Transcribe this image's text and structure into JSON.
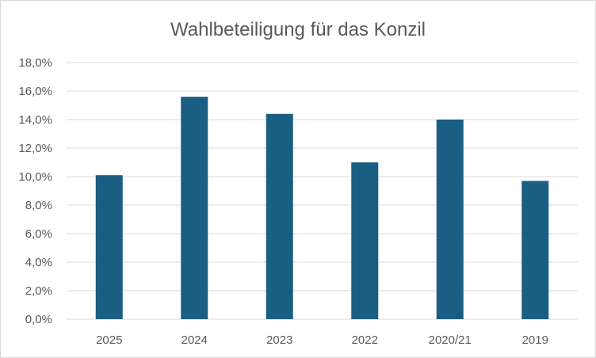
{
  "chart_data": {
    "type": "bar",
    "title": "Wahlbeteiligung für das Konzil",
    "categories": [
      "2025",
      "2024",
      "2023",
      "2022",
      "2020/21",
      "2019"
    ],
    "values": [
      10.1,
      15.6,
      14.4,
      11.0,
      14.0,
      9.7
    ],
    "ylim": [
      0,
      18
    ],
    "yticks": [
      "0,0%",
      "2,0%",
      "4,0%",
      "6,0%",
      "8,0%",
      "10,0%",
      "12,0%",
      "14,0%",
      "16,0%",
      "18,0%"
    ],
    "grid": true,
    "legend": "none",
    "bar_color": "#1a5e83",
    "grid_color": "#d9d9d9",
    "text_color": "#595959"
  }
}
